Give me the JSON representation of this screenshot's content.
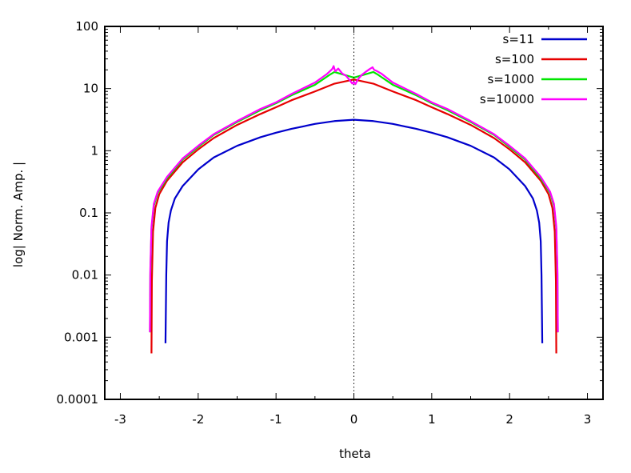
{
  "chart_data": {
    "type": "line",
    "title": "",
    "xlabel": "theta",
    "ylabel": "log| Norm. Amp. |",
    "xlim": [
      -3.2,
      3.2
    ],
    "ylim": [
      0.0001,
      100
    ],
    "yscale": "log",
    "grid": false,
    "legend_position": "top-right",
    "x_ticks": [
      "-3",
      "-2",
      "-1",
      "0",
      "1",
      "2",
      "3"
    ],
    "y_ticks": [
      "0.0001",
      "0.001",
      "0.01",
      "0.1",
      "1",
      "10",
      "100"
    ],
    "reference_line": {
      "x": 0,
      "style": "dotted"
    },
    "series": [
      {
        "name": "s=11",
        "color": "#0000cc",
        "points": [
          [
            -2.42,
            0.0008
          ],
          [
            -2.41,
            0.01
          ],
          [
            -2.4,
            0.035
          ],
          [
            -2.38,
            0.07
          ],
          [
            -2.35,
            0.11
          ],
          [
            -2.3,
            0.17
          ],
          [
            -2.2,
            0.27
          ],
          [
            -2.0,
            0.5
          ],
          [
            -1.8,
            0.78
          ],
          [
            -1.5,
            1.2
          ],
          [
            -1.2,
            1.65
          ],
          [
            -1.0,
            1.95
          ],
          [
            -0.8,
            2.25
          ],
          [
            -0.5,
            2.7
          ],
          [
            -0.25,
            3.0
          ],
          [
            0.0,
            3.15
          ],
          [
            0.25,
            3.0
          ],
          [
            0.5,
            2.7
          ],
          [
            0.8,
            2.25
          ],
          [
            1.0,
            1.95
          ],
          [
            1.2,
            1.65
          ],
          [
            1.5,
            1.2
          ],
          [
            1.8,
            0.78
          ],
          [
            2.0,
            0.5
          ],
          [
            2.2,
            0.27
          ],
          [
            2.3,
            0.17
          ],
          [
            2.35,
            0.11
          ],
          [
            2.38,
            0.07
          ],
          [
            2.4,
            0.035
          ],
          [
            2.41,
            0.01
          ],
          [
            2.42,
            0.0008
          ]
        ]
      },
      {
        "name": "s=100",
        "color": "#e60000",
        "points": [
          [
            -2.6,
            0.00055
          ],
          [
            -2.595,
            0.008
          ],
          [
            -2.58,
            0.05
          ],
          [
            -2.55,
            0.12
          ],
          [
            -2.5,
            0.2
          ],
          [
            -2.4,
            0.33
          ],
          [
            -2.2,
            0.65
          ],
          [
            -2.0,
            1.05
          ],
          [
            -1.8,
            1.6
          ],
          [
            -1.5,
            2.6
          ],
          [
            -1.2,
            3.9
          ],
          [
            -1.0,
            5.0
          ],
          [
            -0.8,
            6.5
          ],
          [
            -0.5,
            9.0
          ],
          [
            -0.25,
            12.0
          ],
          [
            0.0,
            14.0
          ],
          [
            0.25,
            12.0
          ],
          [
            0.5,
            9.0
          ],
          [
            0.8,
            6.5
          ],
          [
            1.0,
            5.0
          ],
          [
            1.2,
            3.9
          ],
          [
            1.5,
            2.6
          ],
          [
            1.8,
            1.6
          ],
          [
            2.0,
            1.05
          ],
          [
            2.2,
            0.65
          ],
          [
            2.4,
            0.33
          ],
          [
            2.5,
            0.2
          ],
          [
            2.55,
            0.12
          ],
          [
            2.58,
            0.05
          ],
          [
            2.595,
            0.008
          ],
          [
            2.6,
            0.00055
          ]
        ]
      },
      {
        "name": "s=1000",
        "color": "#00e600",
        "points": [
          [
            -2.62,
            0.0012
          ],
          [
            -2.615,
            0.01
          ],
          [
            -2.6,
            0.055
          ],
          [
            -2.57,
            0.13
          ],
          [
            -2.52,
            0.21
          ],
          [
            -2.4,
            0.36
          ],
          [
            -2.2,
            0.72
          ],
          [
            -2.0,
            1.15
          ],
          [
            -1.8,
            1.8
          ],
          [
            -1.5,
            2.9
          ],
          [
            -1.2,
            4.5
          ],
          [
            -1.0,
            5.8
          ],
          [
            -0.8,
            7.8
          ],
          [
            -0.5,
            11.5
          ],
          [
            -0.3,
            17.0
          ],
          [
            -0.25,
            18.5
          ],
          [
            -0.15,
            17.0
          ],
          [
            0.0,
            15.0
          ],
          [
            0.15,
            17.0
          ],
          [
            0.25,
            18.5
          ],
          [
            0.3,
            17.0
          ],
          [
            0.5,
            11.5
          ],
          [
            0.8,
            7.8
          ],
          [
            1.0,
            5.8
          ],
          [
            1.2,
            4.5
          ],
          [
            1.5,
            2.9
          ],
          [
            1.8,
            1.8
          ],
          [
            2.0,
            1.15
          ],
          [
            2.2,
            0.72
          ],
          [
            2.4,
            0.36
          ],
          [
            2.52,
            0.21
          ],
          [
            2.57,
            0.13
          ],
          [
            2.6,
            0.055
          ],
          [
            2.615,
            0.01
          ],
          [
            2.62,
            0.0012
          ]
        ]
      },
      {
        "name": "s=10000",
        "color": "#ff00ff",
        "points": [
          [
            -2.62,
            0.0012
          ],
          [
            -2.615,
            0.012
          ],
          [
            -2.6,
            0.06
          ],
          [
            -2.57,
            0.14
          ],
          [
            -2.52,
            0.22
          ],
          [
            -2.4,
            0.38
          ],
          [
            -2.2,
            0.75
          ],
          [
            -2.0,
            1.2
          ],
          [
            -1.8,
            1.85
          ],
          [
            -1.5,
            3.0
          ],
          [
            -1.2,
            4.7
          ],
          [
            -1.0,
            6.0
          ],
          [
            -0.8,
            8.2
          ],
          [
            -0.5,
            12.5
          ],
          [
            -0.35,
            17.0
          ],
          [
            -0.28,
            20.5
          ],
          [
            -0.26,
            23.0
          ],
          [
            -0.24,
            19.0
          ],
          [
            -0.2,
            21.0
          ],
          [
            -0.15,
            17.5
          ],
          [
            -0.1,
            16.0
          ],
          [
            -0.05,
            13.5
          ],
          [
            -0.02,
            12.0
          ],
          [
            0.0,
            12.8
          ],
          [
            0.02,
            11.8
          ],
          [
            0.05,
            14.0
          ],
          [
            0.1,
            16.5
          ],
          [
            0.15,
            18.5
          ],
          [
            0.2,
            20.5
          ],
          [
            0.24,
            22.0
          ],
          [
            0.26,
            20.0
          ],
          [
            0.3,
            19.0
          ],
          [
            0.35,
            17.5
          ],
          [
            0.5,
            12.5
          ],
          [
            0.8,
            8.2
          ],
          [
            1.0,
            6.0
          ],
          [
            1.2,
            4.7
          ],
          [
            1.5,
            3.0
          ],
          [
            1.8,
            1.85
          ],
          [
            2.0,
            1.2
          ],
          [
            2.2,
            0.75
          ],
          [
            2.4,
            0.38
          ],
          [
            2.52,
            0.22
          ],
          [
            2.57,
            0.14
          ],
          [
            2.6,
            0.06
          ],
          [
            2.615,
            0.012
          ],
          [
            2.62,
            0.0012
          ]
        ]
      }
    ]
  }
}
